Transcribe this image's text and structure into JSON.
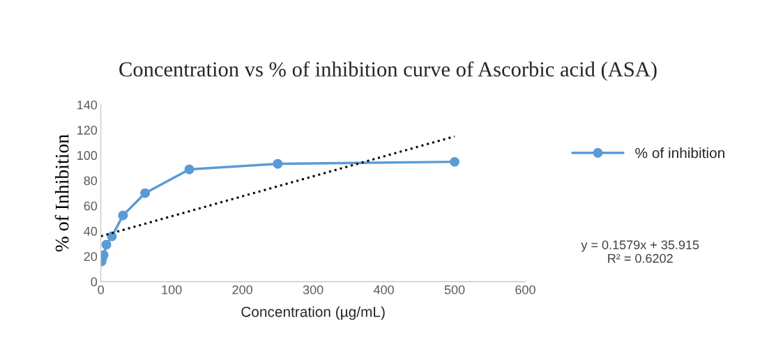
{
  "chart_data": {
    "type": "line",
    "title": "Concentration vs % of inhibition curve of Ascorbic acid (ASA)",
    "xlabel": "Concentration (µg/mL)",
    "ylabel": "% of Inhibition",
    "xlim": [
      0,
      600
    ],
    "xticks": [
      0,
      100,
      200,
      300,
      400,
      500,
      600
    ],
    "ylim": [
      0,
      140
    ],
    "yticks": [
      0,
      20,
      40,
      60,
      80,
      100,
      120,
      140
    ],
    "grid": false,
    "legend": "right",
    "marker": "circle",
    "series": [
      {
        "name": "% of inhibition",
        "color": "#5b9bd5",
        "x": [
          0.98,
          1.95,
          3.9,
          7.8,
          15.6,
          31.25,
          62.5,
          125,
          250,
          500
        ],
        "values": [
          16,
          18.7,
          21,
          29.2,
          35.8,
          52.4,
          70,
          88.8,
          93.2,
          94.8
        ]
      },
      {
        "type": "line",
        "color": "#000000",
        "line_style": "dotted",
        "marker": "none",
        "x": [
          0,
          500
        ],
        "values": [
          35.9,
          114.9
        ]
      }
    ],
    "annotations": [
      "y = 0.1579x + 35.915\nR² = 0.6202"
    ]
  }
}
